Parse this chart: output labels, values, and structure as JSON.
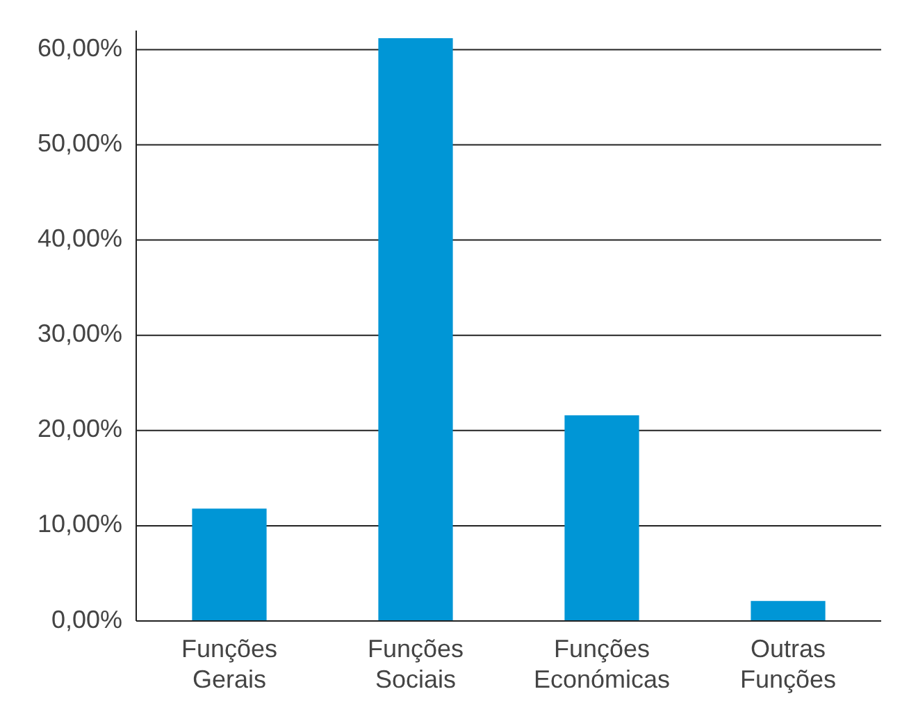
{
  "chart_data": {
    "type": "bar",
    "categories": [
      "Funções Gerais",
      "Funções Sociais",
      "Funções Económicas",
      "Outras Funções"
    ],
    "values": [
      11.8,
      61.2,
      21.6,
      2.1
    ],
    "color": "#0096d6",
    "ylim": [
      0,
      62
    ],
    "yticks": [
      {
        "value": 0,
        "label": "0,00%"
      },
      {
        "value": 10,
        "label": "10,00%"
      },
      {
        "value": 20,
        "label": "20,00%"
      },
      {
        "value": 30,
        "label": "30,00%"
      },
      {
        "value": 40,
        "label": "40,00%"
      },
      {
        "value": 50,
        "label": "50,00%"
      },
      {
        "value": 60,
        "label": "60,00%"
      }
    ],
    "grid": "y"
  }
}
